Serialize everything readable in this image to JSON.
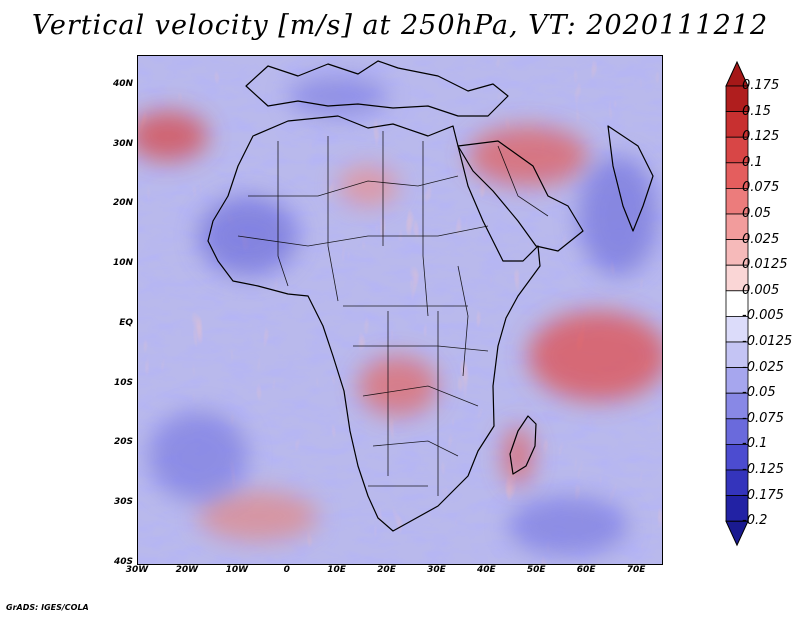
{
  "title": "Vertical velocity [m/s] at 250hPa, VT: 2020111212",
  "credit": "GrADS: IGES/COLA",
  "map": {
    "lon_range": [
      -30,
      75
    ],
    "lat_range": [
      -40,
      45
    ],
    "lat_ticks": [
      {
        "value": 40,
        "label": "40N"
      },
      {
        "value": 30,
        "label": "30N"
      },
      {
        "value": 20,
        "label": "20N"
      },
      {
        "value": 10,
        "label": "10N"
      },
      {
        "value": 0,
        "label": "EQ"
      },
      {
        "value": -10,
        "label": "10S"
      },
      {
        "value": -20,
        "label": "20S"
      },
      {
        "value": -30,
        "label": "30S"
      },
      {
        "value": -40,
        "label": "40S"
      }
    ],
    "lon_ticks": [
      {
        "value": -30,
        "label": "30W"
      },
      {
        "value": -20,
        "label": "20W"
      },
      {
        "value": -10,
        "label": "10W"
      },
      {
        "value": 0,
        "label": "0"
      },
      {
        "value": 10,
        "label": "10E"
      },
      {
        "value": 20,
        "label": "20E"
      },
      {
        "value": 30,
        "label": "30E"
      },
      {
        "value": 40,
        "label": "40E"
      },
      {
        "value": 50,
        "label": "50E"
      },
      {
        "value": 60,
        "label": "60E"
      },
      {
        "value": 70,
        "label": "70E"
      }
    ]
  },
  "colorbar": {
    "levels": [
      {
        "label": "0.175",
        "color": "#b01e1e"
      },
      {
        "label": "0.15",
        "color": "#c83030"
      },
      {
        "label": "0.125",
        "color": "#d84646"
      },
      {
        "label": "0.1",
        "color": "#e45e5e"
      },
      {
        "label": "0.075",
        "color": "#ec7c7c"
      },
      {
        "label": "0.05",
        "color": "#f29c9c"
      },
      {
        "label": "0.025",
        "color": "#f6baba"
      },
      {
        "label": "0.0125",
        "color": "#fad6d6"
      },
      {
        "label": "0.005",
        "color": "#ffffff"
      },
      {
        "label": "-0.005",
        "color": "#ffffff"
      },
      {
        "label": "-0.0125",
        "color": "#dcdcfa"
      },
      {
        "label": "-0.025",
        "color": "#c4c4f4"
      },
      {
        "label": "-0.05",
        "color": "#a6a6ee"
      },
      {
        "label": "-0.075",
        "color": "#8888e6"
      },
      {
        "label": "-0.1",
        "color": "#6a6adc"
      },
      {
        "label": "-0.125",
        "color": "#4c4cd0"
      },
      {
        "label": "-0.175",
        "color": "#3434bc"
      },
      {
        "label": "-0.2",
        "color": "#2222a4"
      }
    ],
    "top_color": "#a51818",
    "bottom_color": "#1a1a90",
    "mid_color": "#ffffff"
  }
}
